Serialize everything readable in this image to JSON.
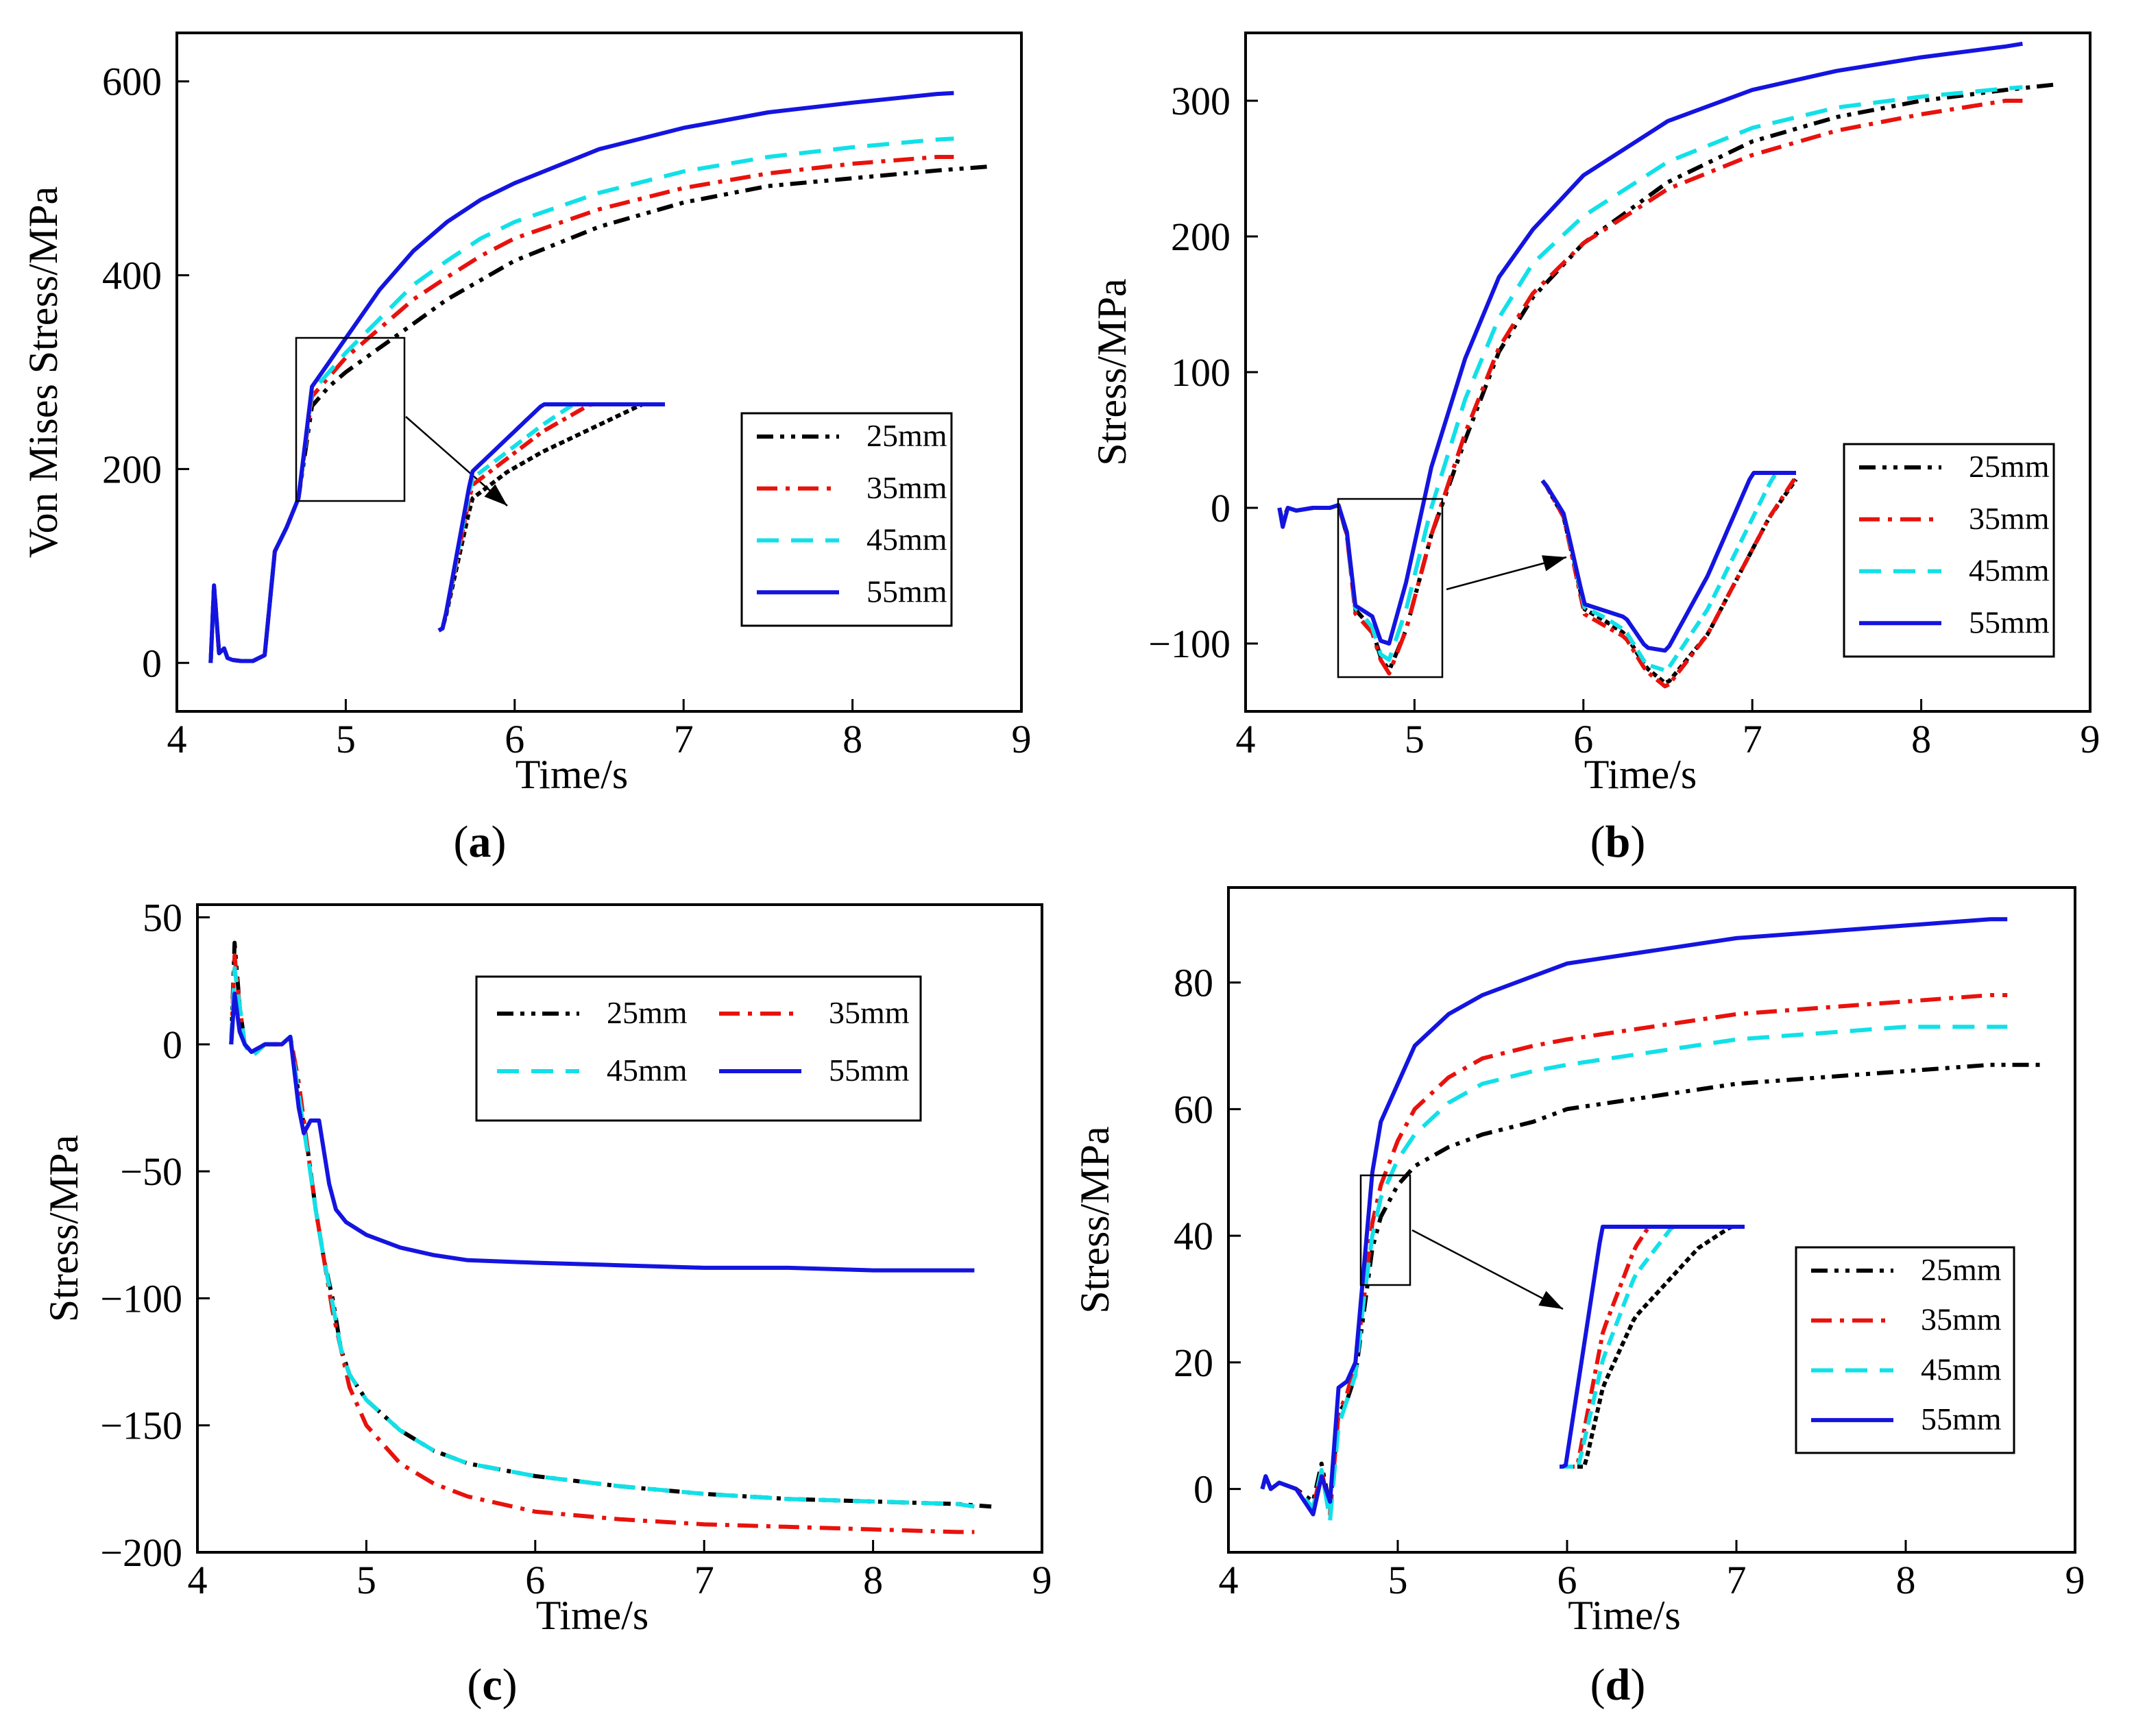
{
  "colors": {
    "25mm": "#000000",
    "35mm": "#e8120c",
    "45mm": "#12e0e8",
    "55mm": "#1414e0"
  },
  "chart_data": [
    {
      "id": "a",
      "panel_label": "a",
      "type": "line",
      "xlabel": "Time/s",
      "ylabel": "Von Mises Stress/MPa",
      "xlim": [
        4,
        9
      ],
      "ylim": [
        -50,
        650
      ],
      "xticks": [
        4,
        5,
        6,
        7,
        8,
        9
      ],
      "yticks": [
        0,
        200,
        400,
        600
      ],
      "legend_position": "right",
      "grid": false,
      "series": [
        {
          "name": "25mm",
          "dash": "dashdotdot",
          "x": [
            4.2,
            4.22,
            4.25,
            4.28,
            4.3,
            4.33,
            4.38,
            4.45,
            4.52,
            4.58,
            4.65,
            4.72,
            4.8,
            4.9,
            5.0,
            5.2,
            5.4,
            5.6,
            5.8,
            6.0,
            6.5,
            7.0,
            7.5,
            8.0,
            8.5,
            8.8
          ],
          "y": [
            0,
            80,
            10,
            15,
            5,
            3,
            2,
            2,
            8,
            115,
            140,
            170,
            265,
            285,
            300,
            325,
            350,
            375,
            395,
            415,
            450,
            475,
            492,
            500,
            508,
            512
          ]
        },
        {
          "name": "35mm",
          "dash": "dashdot",
          "x": [
            4.2,
            4.22,
            4.25,
            4.28,
            4.3,
            4.33,
            4.38,
            4.45,
            4.52,
            4.58,
            4.65,
            4.72,
            4.8,
            4.9,
            5.0,
            5.2,
            5.4,
            5.6,
            5.8,
            6.0,
            6.5,
            7.0,
            7.5,
            8.0,
            8.5,
            8.6
          ],
          "y": [
            0,
            78,
            10,
            15,
            5,
            3,
            2,
            2,
            8,
            115,
            140,
            170,
            275,
            295,
            315,
            345,
            375,
            398,
            420,
            438,
            468,
            490,
            505,
            515,
            522,
            522
          ]
        },
        {
          "name": "45mm",
          "dash": "dash",
          "x": [
            4.2,
            4.22,
            4.25,
            4.28,
            4.3,
            4.33,
            4.38,
            4.45,
            4.52,
            4.58,
            4.65,
            4.72,
            4.8,
            4.9,
            5.0,
            5.2,
            5.4,
            5.6,
            5.8,
            6.0,
            6.5,
            7.0,
            7.5,
            8.0,
            8.5,
            8.6
          ],
          "y": [
            0,
            78,
            10,
            15,
            5,
            3,
            2,
            2,
            8,
            115,
            140,
            170,
            280,
            300,
            320,
            355,
            390,
            415,
            438,
            455,
            485,
            507,
            522,
            532,
            540,
            541
          ]
        },
        {
          "name": "55mm",
          "dash": "solid",
          "x": [
            4.2,
            4.22,
            4.25,
            4.28,
            4.3,
            4.33,
            4.38,
            4.45,
            4.52,
            4.58,
            4.65,
            4.72,
            4.8,
            4.9,
            5.0,
            5.2,
            5.4,
            5.6,
            5.8,
            6.0,
            6.5,
            7.0,
            7.5,
            8.0,
            8.5,
            8.6
          ],
          "y": [
            0,
            80,
            10,
            15,
            5,
            3,
            2,
            2,
            8,
            115,
            140,
            170,
            285,
            310,
            335,
            385,
            425,
            455,
            478,
            495,
            530,
            552,
            568,
            578,
            587,
            588
          ]
        }
      ]
    },
    {
      "id": "b",
      "panel_label": "b",
      "type": "line",
      "xlabel": "Time/s",
      "ylabel": "Stress/MPa",
      "xlim": [
        4,
        9
      ],
      "ylim": [
        -150,
        350
      ],
      "xticks": [
        4,
        5,
        6,
        7,
        8,
        9
      ],
      "yticks": [
        -100,
        0,
        100,
        200,
        300
      ],
      "legend_position": "right",
      "grid": false,
      "series": [
        {
          "name": "25mm",
          "dash": "dashdotdot",
          "x": [
            4.2,
            4.22,
            4.25,
            4.3,
            4.4,
            4.5,
            4.55,
            4.6,
            4.65,
            4.7,
            4.75,
            4.8,
            4.85,
            4.95,
            5.1,
            5.3,
            5.5,
            5.7,
            6.0,
            6.5,
            7.0,
            7.5,
            8.0,
            8.5,
            8.8
          ],
          "y": [
            0,
            -10,
            0,
            -2,
            0,
            0,
            2,
            -20,
            -75,
            -82,
            -90,
            -110,
            -120,
            -90,
            -20,
            50,
            115,
            155,
            195,
            240,
            270,
            288,
            300,
            308,
            312
          ]
        },
        {
          "name": "35mm",
          "dash": "dashdot",
          "x": [
            4.2,
            4.22,
            4.25,
            4.3,
            4.4,
            4.5,
            4.55,
            4.6,
            4.65,
            4.7,
            4.75,
            4.8,
            4.85,
            4.95,
            5.1,
            5.3,
            5.5,
            5.7,
            6.0,
            6.5,
            7.0,
            7.5,
            8.0,
            8.5,
            8.6
          ],
          "y": [
            0,
            -12,
            0,
            -2,
            0,
            0,
            2,
            -20,
            -78,
            -85,
            -92,
            -112,
            -122,
            -90,
            -20,
            55,
            118,
            158,
            195,
            235,
            260,
            278,
            290,
            300,
            300
          ]
        },
        {
          "name": "45mm",
          "dash": "dash",
          "x": [
            4.2,
            4.22,
            4.25,
            4.3,
            4.4,
            4.5,
            4.55,
            4.6,
            4.65,
            4.7,
            4.75,
            4.8,
            4.85,
            4.95,
            5.1,
            5.3,
            5.5,
            5.7,
            6.0,
            6.5,
            7.0,
            7.5,
            8.0,
            8.5,
            8.6
          ],
          "y": [
            0,
            -12,
            0,
            -2,
            0,
            0,
            2,
            -18,
            -74,
            -80,
            -88,
            -108,
            -112,
            -75,
            0,
            80,
            140,
            180,
            215,
            255,
            280,
            295,
            303,
            309,
            310
          ]
        },
        {
          "name": "55mm",
          "dash": "solid",
          "x": [
            4.2,
            4.22,
            4.25,
            4.3,
            4.4,
            4.5,
            4.55,
            4.6,
            4.65,
            4.7,
            4.75,
            4.8,
            4.85,
            4.95,
            5.1,
            5.3,
            5.5,
            5.7,
            6.0,
            6.5,
            7.0,
            7.5,
            8.0,
            8.5,
            8.6
          ],
          "y": [
            0,
            -14,
            0,
            -2,
            0,
            0,
            2,
            -18,
            -72,
            -76,
            -80,
            -98,
            -100,
            -55,
            30,
            110,
            170,
            205,
            245,
            285,
            308,
            322,
            332,
            340,
            342
          ]
        }
      ]
    },
    {
      "id": "c",
      "panel_label": "c",
      "type": "line",
      "xlabel": "Time/s",
      "ylabel": "Stress/MPa",
      "xlim": [
        4,
        9
      ],
      "ylim": [
        -200,
        55
      ],
      "xticks": [
        4,
        5,
        6,
        7,
        8,
        9
      ],
      "yticks": [
        -200,
        -150,
        -100,
        -50,
        0,
        50
      ],
      "legend_position": "top-right",
      "grid": false,
      "series": [
        {
          "name": "25mm",
          "dash": "dashdotdot",
          "x": [
            4.2,
            4.22,
            4.25,
            4.28,
            4.32,
            4.4,
            4.5,
            4.55,
            4.6,
            4.65,
            4.7,
            4.75,
            4.8,
            4.85,
            4.9,
            5.0,
            5.2,
            5.4,
            5.6,
            6.0,
            6.5,
            7.0,
            7.5,
            8.0,
            8.5,
            8.7
          ],
          "y": [
            0,
            40,
            15,
            0,
            -3,
            0,
            0,
            3,
            -20,
            -40,
            -65,
            -85,
            -100,
            -120,
            -130,
            -140,
            -152,
            -160,
            -165,
            -170,
            -174,
            -177,
            -179,
            -180,
            -181,
            -182
          ]
        },
        {
          "name": "35mm",
          "dash": "dashdot",
          "x": [
            4.2,
            4.22,
            4.25,
            4.28,
            4.32,
            4.4,
            4.5,
            4.55,
            4.6,
            4.65,
            4.7,
            4.75,
            4.8,
            4.85,
            4.9,
            5.0,
            5.2,
            5.4,
            5.6,
            6.0,
            6.5,
            7.0,
            7.5,
            8.0,
            8.5,
            8.6
          ],
          "y": [
            0,
            35,
            15,
            0,
            -3,
            0,
            0,
            3,
            -15,
            -40,
            -65,
            -85,
            -105,
            -120,
            -135,
            -150,
            -165,
            -173,
            -178,
            -184,
            -187,
            -189,
            -190,
            -191,
            -192,
            -192
          ]
        },
        {
          "name": "45mm",
          "dash": "dash",
          "x": [
            4.2,
            4.22,
            4.25,
            4.28,
            4.32,
            4.4,
            4.5,
            4.55,
            4.6,
            4.65,
            4.7,
            4.75,
            4.8,
            4.85,
            4.9,
            5.0,
            5.2,
            5.4,
            5.6,
            6.0,
            6.5,
            7.0,
            7.5,
            8.0,
            8.5,
            8.6
          ],
          "y": [
            0,
            30,
            15,
            0,
            -5,
            0,
            0,
            3,
            -20,
            -42,
            -65,
            -85,
            -102,
            -120,
            -130,
            -140,
            -152,
            -160,
            -165,
            -170,
            -174,
            -177,
            -179,
            -180,
            -181,
            -182
          ]
        },
        {
          "name": "55mm",
          "dash": "solid",
          "x": [
            4.2,
            4.22,
            4.25,
            4.28,
            4.32,
            4.4,
            4.5,
            4.55,
            4.6,
            4.63,
            4.67,
            4.72,
            4.78,
            4.82,
            4.88,
            5.0,
            5.2,
            5.4,
            5.6,
            6.0,
            6.5,
            7.0,
            7.5,
            8.0,
            8.5,
            8.6
          ],
          "y": [
            0,
            20,
            5,
            0,
            -3,
            0,
            0,
            3,
            -25,
            -35,
            -30,
            -30,
            -55,
            -65,
            -70,
            -75,
            -80,
            -83,
            -85,
            -86,
            -87,
            -88,
            -88,
            -89,
            -89,
            -89
          ]
        }
      ]
    },
    {
      "id": "d",
      "panel_label": "d",
      "type": "line",
      "xlabel": "Time/s",
      "ylabel": "Stress/MPa",
      "xlim": [
        4,
        9
      ],
      "ylim": [
        -10,
        95
      ],
      "xticks": [
        4,
        5,
        6,
        7,
        8,
        9
      ],
      "yticks": [
        0,
        20,
        40,
        60,
        80
      ],
      "legend_position": "right",
      "grid": false,
      "series": [
        {
          "name": "25mm",
          "dash": "dashdotdot",
          "x": [
            4.2,
            4.22,
            4.25,
            4.3,
            4.4,
            4.5,
            4.55,
            4.6,
            4.65,
            4.7,
            4.75,
            4.8,
            4.85,
            4.9,
            5.0,
            5.1,
            5.3,
            5.5,
            5.8,
            6.0,
            6.5,
            7.0,
            7.5,
            8.0,
            8.5,
            8.8
          ],
          "y": [
            0,
            2,
            0,
            1,
            0,
            -2,
            4,
            -3,
            12,
            14,
            18,
            28,
            38,
            43,
            48,
            51,
            54,
            56,
            58,
            60,
            62,
            64,
            65,
            66,
            67,
            67
          ]
        },
        {
          "name": "35mm",
          "dash": "dashdot",
          "x": [
            4.2,
            4.22,
            4.25,
            4.3,
            4.4,
            4.5,
            4.55,
            4.6,
            4.65,
            4.7,
            4.75,
            4.8,
            4.85,
            4.9,
            5.0,
            5.1,
            5.3,
            5.5,
            5.8,
            6.0,
            6.5,
            7.0,
            7.5,
            8.0,
            8.5,
            8.6
          ],
          "y": [
            0,
            2,
            0,
            1,
            0,
            -3,
            3,
            -4,
            12,
            15,
            20,
            30,
            42,
            48,
            55,
            60,
            65,
            68,
            70,
            71,
            73,
            75,
            76,
            77,
            78,
            78
          ]
        },
        {
          "name": "45mm",
          "dash": "dash",
          "x": [
            4.2,
            4.22,
            4.25,
            4.3,
            4.4,
            4.5,
            4.55,
            4.6,
            4.65,
            4.7,
            4.75,
            4.8,
            4.85,
            4.9,
            5.0,
            5.1,
            5.3,
            5.5,
            5.8,
            6.0,
            6.5,
            7.0,
            7.5,
            8.0,
            8.5,
            8.6
          ],
          "y": [
            0,
            2,
            0,
            1,
            0,
            -3,
            3,
            -5,
            10,
            14,
            18,
            30,
            40,
            46,
            52,
            56,
            61,
            64,
            66,
            67,
            69,
            71,
            72,
            73,
            73,
            73
          ]
        },
        {
          "name": "55mm",
          "dash": "solid",
          "x": [
            4.2,
            4.22,
            4.25,
            4.3,
            4.4,
            4.5,
            4.55,
            4.6,
            4.65,
            4.7,
            4.75,
            4.8,
            4.85,
            4.9,
            5.0,
            5.1,
            5.3,
            5.5,
            5.8,
            6.0,
            6.5,
            7.0,
            7.5,
            8.0,
            8.5,
            8.6
          ],
          "y": [
            0,
            2,
            0,
            1,
            0,
            -4,
            2,
            -2,
            16,
            17,
            20,
            35,
            50,
            58,
            64,
            70,
            75,
            78,
            81,
            83,
            85,
            87,
            88,
            89,
            90,
            90
          ]
        }
      ]
    }
  ]
}
